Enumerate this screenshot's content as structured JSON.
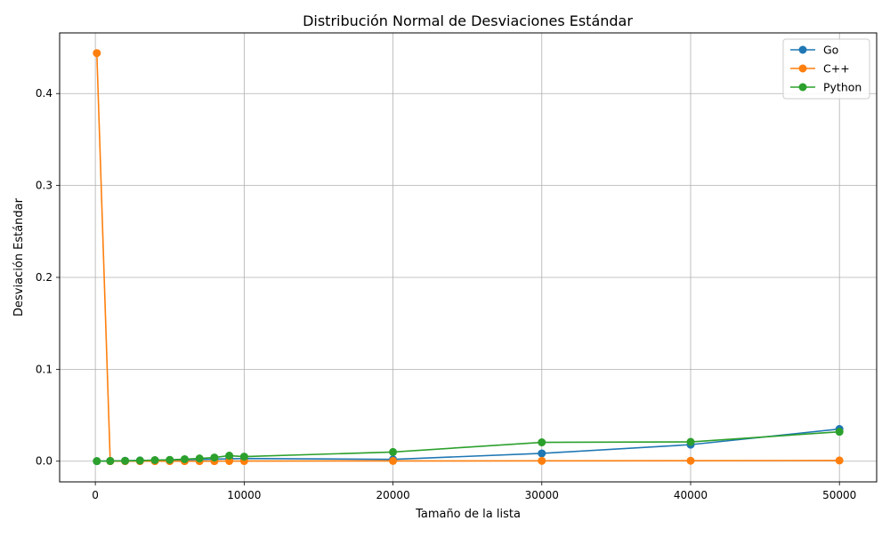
{
  "chart_data": {
    "type": "line",
    "title": "Distribución Normal de Desviaciones Estándar",
    "xlabel": "Tamaño de la lista",
    "ylabel": "Desviación Estándar",
    "xlim": [
      -2400,
      52500
    ],
    "ylim": [
      -0.0225,
      0.466
    ],
    "x_ticks": [
      0,
      10000,
      20000,
      30000,
      40000,
      50000
    ],
    "y_ticks": [
      0.0,
      0.1,
      0.2,
      0.3,
      0.4
    ],
    "x_tick_labels": [
      "0",
      "10000",
      "20000",
      "30000",
      "40000",
      "50000"
    ],
    "y_tick_labels": [
      "0.0",
      "0.1",
      "0.2",
      "0.3",
      "0.4"
    ],
    "grid": true,
    "legend_position": "top-right",
    "x": [
      100,
      1000,
      2000,
      3000,
      4000,
      5000,
      6000,
      7000,
      8000,
      9000,
      10000,
      20000,
      30000,
      40000,
      50000
    ],
    "series": [
      {
        "name": "Go",
        "color": "#1f77b4",
        "values": [
          0.0001,
          0.0003,
          0.0005,
          0.0008,
          0.001,
          0.0012,
          0.0015,
          0.0018,
          0.0022,
          0.0026,
          0.003,
          0.002,
          0.0085,
          0.018,
          0.035
        ]
      },
      {
        "name": "C++",
        "color": "#ff7f0e",
        "values": [
          0.444,
          0.0001,
          0.0001,
          0.0001,
          0.0001,
          0.0001,
          0.0001,
          0.0001,
          0.0001,
          0.0002,
          0.0002,
          0.0003,
          0.0004,
          0.0005,
          0.0008
        ]
      },
      {
        "name": "Python",
        "color": "#2ca02c",
        "values": [
          0.0001,
          0.0002,
          0.0004,
          0.0007,
          0.0012,
          0.0015,
          0.0022,
          0.003,
          0.004,
          0.006,
          0.005,
          0.01,
          0.0205,
          0.021,
          0.032
        ]
      }
    ]
  }
}
